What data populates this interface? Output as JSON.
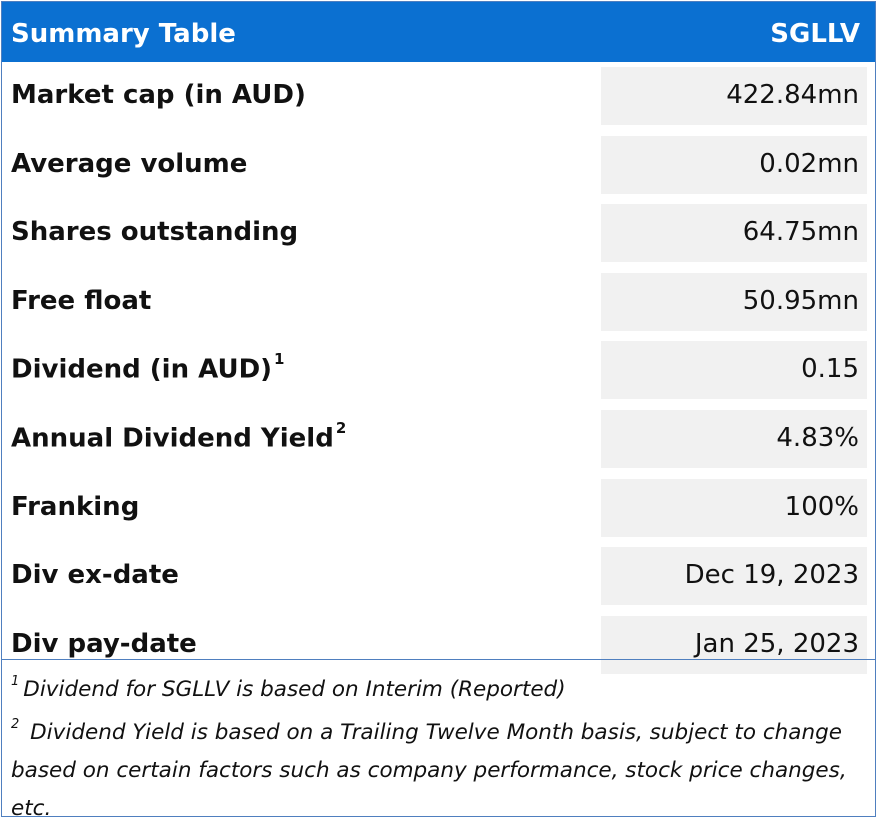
{
  "header": {
    "title": "Summary Table",
    "ticker": "SGLLV"
  },
  "rows": [
    {
      "label": "Market cap (in AUD)",
      "sup": "",
      "value": "422.84mn"
    },
    {
      "label": "Average volume",
      "sup": "",
      "value": "0.02mn"
    },
    {
      "label": "Shares outstanding",
      "sup": "",
      "value": "64.75mn"
    },
    {
      "label": "Free float",
      "sup": "",
      "value": "50.95mn"
    },
    {
      "label": "Dividend (in AUD)",
      "sup": "1",
      "value": "0.15"
    },
    {
      "label": "Annual Dividend Yield",
      "sup": "2",
      "value": "4.83%"
    },
    {
      "label": "Franking",
      "sup": "",
      "value": "100%"
    },
    {
      "label": "Div ex-date",
      "sup": "",
      "value": "Dec 19, 2023"
    },
    {
      "label": "Div pay-date",
      "sup": "",
      "value": "Jan 25, 2023"
    }
  ],
  "footnotes": {
    "fn1_mark": "1",
    "fn1_text": "Dividend for SGLLV is based on Interim (Reported)",
    "fn2_mark": "2",
    "fn2_text": "Dividend Yield is based on a Trailing Twelve Month basis, subject to change based on certain factors such as company performance, stock price changes, etc."
  },
  "colors": {
    "header_bg": "#0b70d1",
    "value_cell_bg": "#f1f1f1",
    "border": "#4f7fbf"
  }
}
